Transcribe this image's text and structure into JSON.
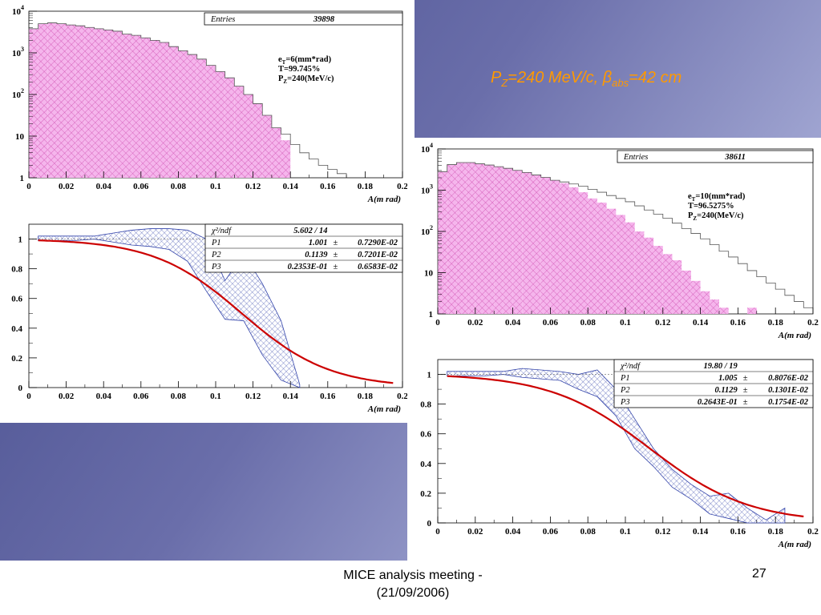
{
  "slide": {
    "headline_p": "P",
    "headline_p_sub": "Z",
    "headline_mid": "=240 MeV/c, ",
    "headline_beta": "β",
    "headline_beta_sub": "abs",
    "headline_end": "=42 cm",
    "footer_line1": "MICE analysis meeting -",
    "footer_line2": "(21/09/2006)",
    "page_number": "27"
  },
  "colors": {
    "fill": "#f5b5ec",
    "fill_hatch": "#cc44aa",
    "band": "#3344aa",
    "fit": "#cc0000"
  },
  "chart_data": [
    {
      "type": "bar",
      "id": "hist_left",
      "xlabel": "A(m rad)",
      "xlim": [
        0,
        0.2
      ],
      "ylog": true,
      "xticks": [
        "0",
        "0.02",
        "0.04",
        "0.06",
        "0.08",
        "0.1",
        "0.12",
        "0.14",
        "0.16",
        "0.18",
        "0.2"
      ],
      "yticks": [
        {
          "base": "1",
          "exp": ""
        },
        {
          "base": "10",
          "exp": ""
        },
        {
          "base": "10",
          "exp": "2"
        },
        {
          "base": "10",
          "exp": "3"
        },
        {
          "base": "10",
          "exp": "4"
        }
      ],
      "stats": [
        {
          "label": "Entries",
          "value": "39898"
        }
      ],
      "annot": [
        {
          "pre": "e",
          "sub": "T",
          "post": "=6(mm*rad)"
        },
        {
          "pre": "T=99.745%",
          "sub": "",
          "post": ""
        },
        {
          "pre": "P",
          "sub": "Z",
          "post": "=240(MeV/c)"
        }
      ],
      "bin_width": 0.005,
      "filled_log10": [
        3.58,
        3.7,
        3.72,
        3.7,
        3.67,
        3.65,
        3.61,
        3.58,
        3.55,
        3.52,
        3.45,
        3.42,
        3.36,
        3.3,
        3.25,
        3.15,
        3.05,
        2.96,
        2.85,
        2.7,
        2.55,
        2.4,
        2.2,
        2.0,
        1.78,
        1.5,
        1.2,
        0.9
      ],
      "outline_log10": [
        3.58,
        3.7,
        3.72,
        3.7,
        3.67,
        3.65,
        3.61,
        3.58,
        3.55,
        3.52,
        3.45,
        3.42,
        3.36,
        3.3,
        3.25,
        3.15,
        3.05,
        2.96,
        2.85,
        2.7,
        2.55,
        2.4,
        2.2,
        2.0,
        1.78,
        1.5,
        1.2,
        1.05,
        0.8,
        0.6,
        0.45,
        0.3,
        0.2,
        0.1
      ]
    },
    {
      "type": "line",
      "id": "trans_left",
      "xlabel": "A(m rad)",
      "xlim": [
        0,
        0.2
      ],
      "ylim": [
        0,
        1.1
      ],
      "xticks": [
        "0",
        "0.02",
        "0.04",
        "0.06",
        "0.08",
        "0.1",
        "0.12",
        "0.14",
        "0.16",
        "0.18",
        "0.2"
      ],
      "yticks": [
        "0",
        "0.2",
        "0.4",
        "0.6",
        "0.8",
        "1"
      ],
      "stats": [
        {
          "label": "χ²/ndf",
          "value": "5.602   /   14",
          "err": ""
        },
        {
          "label": "P1",
          "value": "1.001",
          "err": "0.7290E-02"
        },
        {
          "label": "P2",
          "value": "0.1139",
          "err": "0.7201E-02"
        },
        {
          "label": "P3",
          "value": "0.2353E-01",
          "err": "0.6583E-02"
        }
      ],
      "fit": {
        "p1": 1.001,
        "p2": 0.1139,
        "p3": 0.02353
      },
      "band_x": [
        0.005,
        0.015,
        0.025,
        0.035,
        0.045,
        0.055,
        0.065,
        0.075,
        0.085,
        0.095,
        0.105,
        0.115,
        0.125,
        0.135,
        0.145
      ],
      "band_upper": [
        1.02,
        1.02,
        1.02,
        1.02,
        1.04,
        1.06,
        1.07,
        1.07,
        1.06,
        1.0,
        0.72,
        0.9,
        0.7,
        0.45,
        0.02
      ],
      "band_lower": [
        0.99,
        0.99,
        0.99,
        1.0,
        0.98,
        0.96,
        0.95,
        0.93,
        0.85,
        0.65,
        0.46,
        0.45,
        0.22,
        0.05,
        0.0
      ]
    },
    {
      "type": "bar",
      "id": "hist_right",
      "xlabel": "A(m rad)",
      "xlim": [
        0,
        0.2
      ],
      "ylog": true,
      "xticks": [
        "0",
        "0.02",
        "0.04",
        "0.06",
        "0.08",
        "0.1",
        "0.12",
        "0.14",
        "0.16",
        "0.18",
        "0.2"
      ],
      "yticks": [
        {
          "base": "1",
          "exp": ""
        },
        {
          "base": "10",
          "exp": ""
        },
        {
          "base": "10",
          "exp": "2"
        },
        {
          "base": "10",
          "exp": "3"
        },
        {
          "base": "10",
          "exp": "4"
        }
      ],
      "stats": [
        {
          "label": "Entries",
          "value": "38611"
        }
      ],
      "annot": [
        {
          "pre": "e",
          "sub": "T",
          "post": "=10(mm*rad)"
        },
        {
          "pre": "T=96.5275%",
          "sub": "",
          "post": ""
        },
        {
          "pre": "P",
          "sub": "Z",
          "post": "=240(MeV/c)"
        }
      ],
      "bin_width": 0.005,
      "filled_log10": [
        3.45,
        3.62,
        3.67,
        3.67,
        3.64,
        3.61,
        3.57,
        3.53,
        3.48,
        3.43,
        3.37,
        3.31,
        3.24,
        3.17,
        3.07,
        2.95,
        2.8,
        2.7,
        2.55,
        2.4,
        2.22,
        2.0,
        1.85,
        1.65,
        1.45,
        1.3,
        1.05,
        0.8,
        0.55,
        0.35,
        0.15,
        0.0,
        0.0,
        0.15
      ],
      "outline_log10": [
        3.45,
        3.62,
        3.67,
        3.67,
        3.64,
        3.61,
        3.57,
        3.53,
        3.48,
        3.43,
        3.37,
        3.31,
        3.24,
        3.2,
        3.15,
        3.1,
        3.02,
        2.95,
        2.87,
        2.8,
        2.72,
        2.62,
        2.52,
        2.42,
        2.32,
        2.2,
        2.07,
        1.95,
        1.82,
        1.68,
        1.52,
        1.38,
        1.22,
        1.05,
        0.9,
        0.75,
        0.6,
        0.45,
        0.3,
        0.15
      ]
    },
    {
      "type": "line",
      "id": "trans_right",
      "xlabel": "A(m rad)",
      "xlim": [
        0,
        0.2
      ],
      "ylim": [
        0,
        1.1
      ],
      "xticks": [
        "0",
        "0.02",
        "0.04",
        "0.06",
        "0.08",
        "0.1",
        "0.12",
        "0.14",
        "0.16",
        "0.18",
        "0.2"
      ],
      "yticks": [
        "0",
        "0.2",
        "0.4",
        "0.6",
        "0.8",
        "1"
      ],
      "stats": [
        {
          "label": "χ²/ndf",
          "value": "19.80   /   19",
          "err": ""
        },
        {
          "label": "P1",
          "value": "1.005",
          "err": "0.8076E-02"
        },
        {
          "label": "P2",
          "value": "0.1129",
          "err": "0.1301E-02"
        },
        {
          "label": "P3",
          "value": "0.2643E-01",
          "err": "0.1754E-02"
        }
      ],
      "fit": {
        "p1": 1.005,
        "p2": 0.1129,
        "p3": 0.02643
      },
      "band_x": [
        0.005,
        0.015,
        0.025,
        0.035,
        0.045,
        0.055,
        0.065,
        0.075,
        0.085,
        0.095,
        0.105,
        0.115,
        0.125,
        0.135,
        0.145,
        0.155,
        0.165,
        0.175,
        0.185
      ],
      "band_upper": [
        1.02,
        1.02,
        1.02,
        1.02,
        1.04,
        1.03,
        1.02,
        1.0,
        1.03,
        0.9,
        0.7,
        0.5,
        0.36,
        0.26,
        0.18,
        0.2,
        0.1,
        0.02,
        0.1
      ],
      "band_lower": [
        0.99,
        0.99,
        0.99,
        1.0,
        0.98,
        0.97,
        0.96,
        0.9,
        0.85,
        0.72,
        0.5,
        0.38,
        0.24,
        0.16,
        0.06,
        0.03,
        0.0,
        0.0,
        0.0
      ]
    }
  ]
}
